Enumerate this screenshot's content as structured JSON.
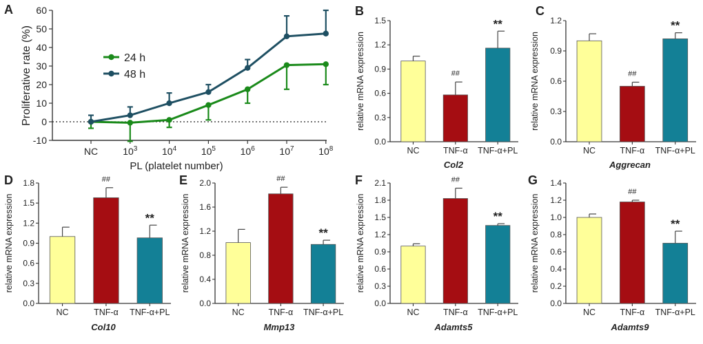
{
  "colors": {
    "nc": "#ffff99",
    "tnf": "#a50d12",
    "tnfpl": "#138096",
    "h24": "#1a8a1a",
    "h48": "#1e4f62",
    "axis": "#333333"
  },
  "chart_data": [
    {
      "panel": "A",
      "type": "line",
      "title": "",
      "xlabel": "PL (platelet number)",
      "ylabel": "Proliferative rate (%)",
      "categories": [
        "NC",
        "10^3",
        "10^4",
        "10^5",
        "10^6",
        "10^7",
        "10^8"
      ],
      "tick_labels": [
        {
          "base": "NC",
          "exp": ""
        },
        {
          "base": "10",
          "exp": "3"
        },
        {
          "base": "10",
          "exp": "4"
        },
        {
          "base": "10",
          "exp": "5"
        },
        {
          "base": "10",
          "exp": "6"
        },
        {
          "base": "10",
          "exp": "7"
        },
        {
          "base": "10",
          "exp": "8"
        }
      ],
      "ylim": [
        -10,
        60
      ],
      "yticks": [
        -10,
        0,
        10,
        20,
        30,
        40,
        50,
        60
      ],
      "legend_position": "upper-left",
      "reference_line": 0,
      "series": [
        {
          "name": "24 h",
          "color_key": "h24",
          "values": [
            0,
            -0.5,
            1,
            9,
            17.5,
            30.5,
            31
          ],
          "errors": [
            3.5,
            10,
            4,
            8,
            7.5,
            13,
            11
          ]
        },
        {
          "name": "48 h",
          "color_key": "h48",
          "values": [
            0,
            3.5,
            10,
            16,
            29,
            46,
            47.5
          ],
          "errors": [
            3.5,
            4.5,
            5.5,
            4,
            4.5,
            11,
            12.5
          ]
        }
      ]
    },
    {
      "panel": "B",
      "type": "bar",
      "gene": "Col2",
      "ylabel": "relative mRNA expression",
      "categories": [
        "NC",
        "TNF-α",
        "TNF-α+PL"
      ],
      "values": [
        1.0,
        0.58,
        1.16
      ],
      "errors": [
        0.06,
        0.16,
        0.21
      ],
      "marks": [
        "",
        "##",
        "**"
      ],
      "ylim": [
        0,
        1.5
      ],
      "yticks": [
        "0.0",
        "0.3",
        "0.6",
        "0.9",
        "1.2",
        "1.5"
      ]
    },
    {
      "panel": "C",
      "type": "bar",
      "gene": "Aggrecan",
      "ylabel": "relative mRNA expression",
      "categories": [
        "NC",
        "TNF-α",
        "TNF-α+PL"
      ],
      "values": [
        1.0,
        0.55,
        1.02
      ],
      "errors": [
        0.07,
        0.04,
        0.06
      ],
      "marks": [
        "",
        "##",
        "**"
      ],
      "ylim": [
        0,
        1.2
      ],
      "yticks": [
        "0.0",
        "0.3",
        "0.6",
        "0.9",
        "1.2"
      ]
    },
    {
      "panel": "D",
      "type": "bar",
      "gene": "Col10",
      "ylabel": "relative mRNA expression",
      "categories": [
        "NC",
        "TNF-α",
        "TNF-α+PL"
      ],
      "values": [
        1.0,
        1.58,
        0.98
      ],
      "errors": [
        0.14,
        0.15,
        0.19
      ],
      "marks": [
        "",
        "##",
        "**"
      ],
      "ylim": [
        0,
        1.8
      ],
      "yticks": [
        "0.0",
        "0.3",
        "0.6",
        "0.9",
        "1.2",
        "1.5",
        "1.8"
      ]
    },
    {
      "panel": "E",
      "type": "bar",
      "gene": "Mmp13",
      "ylabel": "relative mRNA expression",
      "categories": [
        "NC",
        "TNF-α",
        "TNF-α+PL"
      ],
      "values": [
        1.01,
        1.82,
        0.98
      ],
      "errors": [
        0.22,
        0.11,
        0.07
      ],
      "marks": [
        "",
        "##",
        "**"
      ],
      "ylim": [
        0,
        2.0
      ],
      "yticks": [
        "0.0",
        "0.4",
        "0.8",
        "1.2",
        "1.6",
        "2.0"
      ]
    },
    {
      "panel": "F",
      "type": "bar",
      "gene": "Adamts5",
      "ylabel": "relative mRNA expression",
      "categories": [
        "NC",
        "TNF-α",
        "TNF-α+PL"
      ],
      "values": [
        1.0,
        1.83,
        1.36
      ],
      "errors": [
        0.04,
        0.18,
        0.03
      ],
      "marks": [
        "",
        "##",
        "**"
      ],
      "ylim": [
        0,
        2.1
      ],
      "yticks": [
        "0.0",
        "0.3",
        "0.6",
        "0.9",
        "1.2",
        "1.5",
        "1.8",
        "2.1"
      ]
    },
    {
      "panel": "G",
      "type": "bar",
      "gene": "Adamts9",
      "ylabel": "relative mRNA expression",
      "categories": [
        "NC",
        "TNF-α",
        "TNF-α+PL"
      ],
      "values": [
        1.0,
        1.18,
        0.7
      ],
      "errors": [
        0.04,
        0.02,
        0.14
      ],
      "marks": [
        "",
        "##",
        "**"
      ],
      "ylim": [
        0,
        1.4
      ],
      "yticks": [
        "0.0",
        "0.2",
        "0.4",
        "0.6",
        "0.8",
        "1.0",
        "1.2",
        "1.4"
      ]
    }
  ]
}
